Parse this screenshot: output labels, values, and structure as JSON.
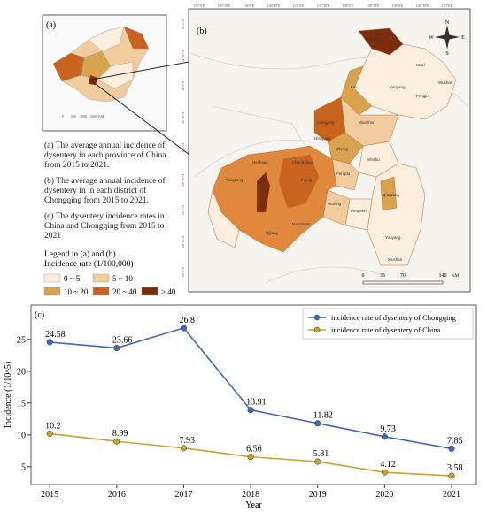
{
  "map_a": {
    "label": "(a)",
    "scale": [
      "0",
      "500",
      "1000",
      "2000 KM"
    ]
  },
  "captions": [
    "(a) The average annual incidence of dysentery in each province of China from 2015 to 2021.",
    "(b) The average annual incidence of dysentery in in each district of Chongqing from 2015 to 2021.",
    "(c) The dysentery incidence rates in China and Chongqing from 2015 to 2021"
  ],
  "legend": {
    "title": "Legend in (a) and (b)",
    "subtitle": "Incidence rate (1/100,000)",
    "items": [
      {
        "label": "0 ~ 5",
        "color": "#fbeedd"
      },
      {
        "label": "5 ~ 10",
        "color": "#f1cc9e"
      },
      {
        "label": "10 ~ 20",
        "color": "#d9a24e"
      },
      {
        "label": "20 ~ 40",
        "color": "#c8641e"
      },
      {
        "label": "> 40",
        "color": "#7a2e0e"
      }
    ]
  },
  "map_b": {
    "label": "(b)",
    "lon_labels": [
      "105°0'E",
      "105°30'E",
      "106°0'E",
      "106°30'E",
      "107°0'E",
      "107°30'E",
      "108°0'E",
      "108°30'E",
      "109°0'E",
      "109°30'E",
      "110°0'E"
    ],
    "lat_labels": [
      "32°0'N",
      "31°30'N",
      "31°0'N",
      "30°30'N",
      "30°0'N",
      "29°30'N",
      "29°0'N",
      "28°30'N",
      "28°0'N"
    ],
    "districts": [
      "Chengkou",
      "Wuxi",
      "Kai",
      "Yunyang",
      "Fengjie",
      "Wushan",
      "Wanzhou",
      "Liangping",
      "Zhong",
      "Shizhu",
      "Fengdu",
      "Pengshui",
      "Youyang",
      "Xiushan",
      "Qianjiang",
      "Wulong",
      "Nanchuan",
      "Qijiang",
      "Fuling",
      "Changshou",
      "Hechuan",
      "Tongliang",
      "Dianjiang"
    ],
    "scale": [
      "0",
      "35",
      "70",
      "140"
    ],
    "scale_unit": "KM",
    "compass": [
      "N",
      "S",
      "W",
      "E"
    ]
  },
  "chart_data": {
    "type": "line",
    "panel_label": "(c)",
    "xlabel": "Year",
    "ylabel": "Incidence (1/10^5)",
    "x": [
      2015,
      2016,
      2017,
      2018,
      2019,
      2020,
      2021
    ],
    "series": [
      {
        "name": "incidence rate of dysentery of Chongqing",
        "color": "#4169b8",
        "values": [
          24.58,
          23.66,
          26.8,
          13.91,
          11.82,
          9.73,
          7.85
        ]
      },
      {
        "name": "incidence rate of dysentery of China",
        "color": "#c9a227",
        "values": [
          10.2,
          8.99,
          7.93,
          6.56,
          5.81,
          4.12,
          3.58
        ]
      }
    ],
    "xlim": [
      2014.72,
      2021.37
    ],
    "xticks": [
      2015,
      2016,
      2017,
      2018,
      2019,
      2020,
      2021
    ],
    "ylim": [
      2.2,
      30.4
    ],
    "yticks": [
      5,
      10,
      15,
      20,
      25
    ],
    "legend": "upper right"
  }
}
